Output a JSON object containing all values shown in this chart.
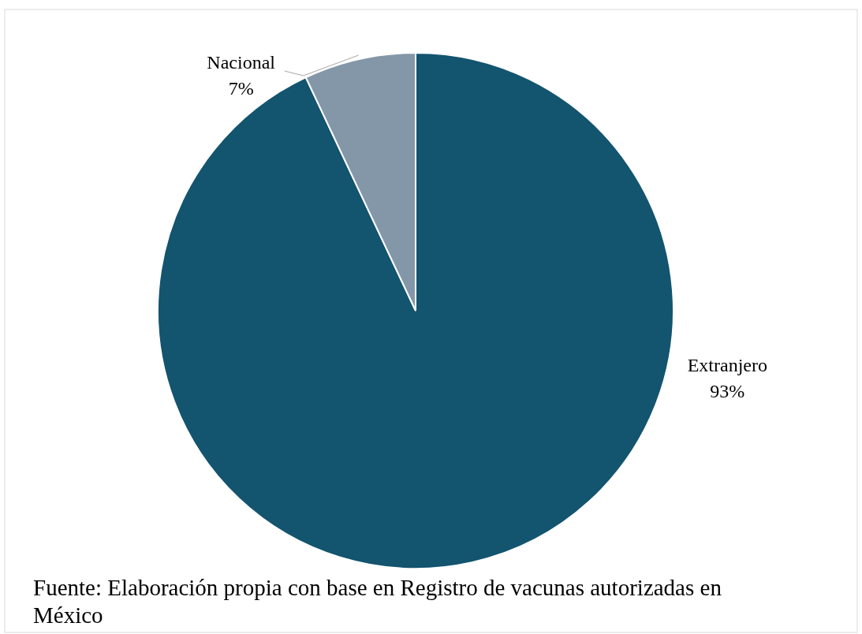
{
  "chart_data": {
    "type": "pie",
    "categories": [
      "Extranjero",
      "Nacional"
    ],
    "values": [
      93,
      7
    ],
    "colors": [
      "#13546f",
      "#8497a8"
    ],
    "value_labels": [
      "93%",
      "7%"
    ],
    "annotations": [
      "Fuente: Elaboración propia con base en Registro de vacunas autorizadas en México"
    ]
  }
}
